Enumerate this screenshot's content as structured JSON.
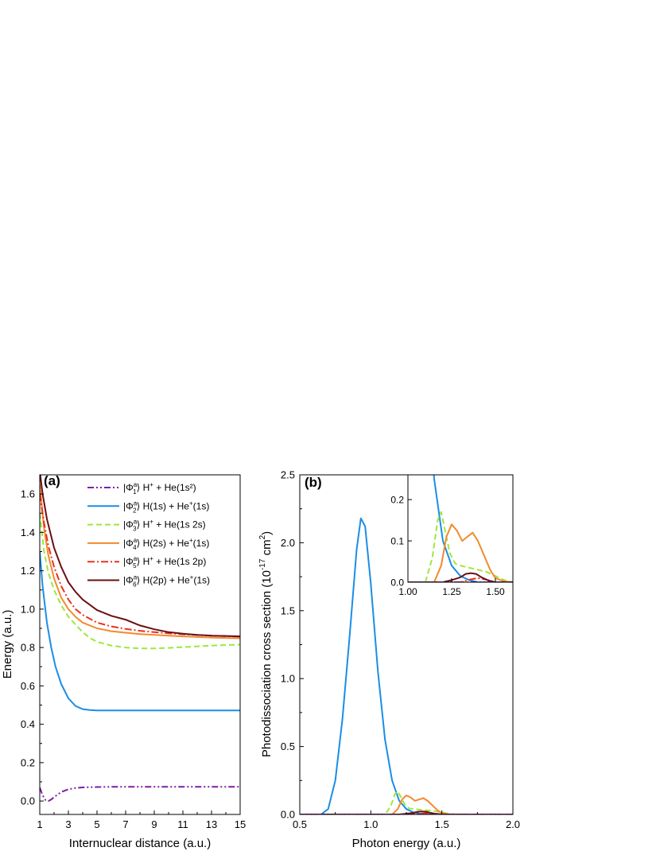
{
  "colors": {
    "phi1": "#7b1fa2",
    "phi2": "#1a8ee6",
    "phi3": "#9de83a",
    "phi4": "#f28a2e",
    "phi5": "#e8321e",
    "phi6": "#6b0f14"
  },
  "legend_a": [
    {
      "ket": "|Φ",
      "sup": "a",
      "sub": "1",
      "rest": "⟩  H",
      "rest_sup": "+",
      "tail": " + He(1s²)",
      "tail_sup": "",
      "tail_end": "",
      "color_key": "phi1",
      "dash": "dashdot-dot"
    },
    {
      "ket": "|Φ",
      "sup": "a",
      "sub": "2",
      "rest": "⟩  H(1s) + He",
      "rest_sup": "+",
      "tail": "(1s)",
      "tail_sup": "",
      "tail_end": "",
      "color_key": "phi2",
      "dash": "solid"
    },
    {
      "ket": "|Φ",
      "sup": "a",
      "sub": "3",
      "rest": "⟩  H",
      "rest_sup": "+",
      "tail": " + He(1s 2s)",
      "tail_sup": "",
      "tail_end": "",
      "color_key": "phi3",
      "dash": "dashed"
    },
    {
      "ket": "|Φ",
      "sup": "a",
      "sub": "4",
      "rest": "⟩  H(2s) + He",
      "rest_sup": "+",
      "tail": "(1s)",
      "tail_sup": "",
      "tail_end": "",
      "color_key": "phi4",
      "dash": "solid"
    },
    {
      "ket": "|Φ",
      "sup": "a",
      "sub": "5",
      "rest": "⟩  H",
      "rest_sup": "+",
      "tail": " + He(1s 2p)",
      "tail_sup": "",
      "tail_end": "",
      "color_key": "phi5",
      "dash": "dashdot"
    },
    {
      "ket": "|Φ",
      "sup": "a",
      "sub": "6",
      "rest": "⟩  H(2p) + He",
      "rest_sup": "+",
      "tail": "(1s)",
      "tail_sup": "",
      "tail_end": "",
      "color_key": "phi6",
      "dash": "solid"
    }
  ],
  "chart_data": [
    {
      "id": "a",
      "type": "line",
      "panel_label": "(a)",
      "xlabel": "Internuclear distance (a.u.)",
      "ylabel": "Energy (a.u.)",
      "xlim": [
        1,
        15
      ],
      "ylim": [
        -0.07,
        1.7
      ],
      "xticks": [
        "1",
        "3",
        "5",
        "7",
        "9",
        "11",
        "13",
        "15"
      ],
      "yticks": [
        "0.0",
        "0.2",
        "0.4",
        "0.6",
        "0.8",
        "1.0",
        "1.2",
        "1.4",
        "1.6"
      ],
      "series": [
        {
          "name": "|Φ1a⟩ H+ + He(1s²)",
          "color_key": "phi1",
          "dash": "dashdot-dot",
          "x": [
            1.0,
            1.2,
            1.4,
            1.6,
            1.8,
            2.0,
            2.3,
            2.6,
            3.0,
            3.5,
            4.0,
            5.0,
            6.0,
            8.0,
            10.0,
            12.0,
            15.0
          ],
          "y": [
            0.07,
            0.03,
            0.005,
            0.0,
            0.008,
            0.02,
            0.037,
            0.05,
            0.061,
            0.068,
            0.071,
            0.073,
            0.074,
            0.074,
            0.074,
            0.074,
            0.074
          ]
        },
        {
          "name": "|Φ2a⟩ H(1s) + He+(1s)",
          "color_key": "phi2",
          "dash": "solid",
          "x": [
            1.0,
            1.2,
            1.5,
            1.8,
            2.1,
            2.5,
            3.0,
            3.5,
            4.0,
            4.5,
            5.0,
            6.0,
            8.0,
            10.0,
            12.0,
            15.0
          ],
          "y": [
            1.3,
            1.12,
            0.93,
            0.8,
            0.7,
            0.61,
            0.535,
            0.495,
            0.479,
            0.474,
            0.472,
            0.472,
            0.472,
            0.472,
            0.472,
            0.472
          ]
        },
        {
          "name": "|Φ3a⟩ H+ + He(1s 2s)",
          "color_key": "phi3",
          "dash": "dashed",
          "x": [
            1.0,
            1.3,
            1.6,
            2.0,
            2.5,
            3.0,
            3.5,
            4.0,
            4.5,
            5.0,
            6.0,
            7.0,
            8.0,
            9.0,
            10.0,
            11.0,
            12.0,
            13.0,
            14.0,
            15.0
          ],
          "y": [
            1.5,
            1.3,
            1.19,
            1.1,
            1.02,
            0.96,
            0.92,
            0.88,
            0.85,
            0.83,
            0.81,
            0.8,
            0.795,
            0.795,
            0.798,
            0.802,
            0.806,
            0.81,
            0.813,
            0.815
          ]
        },
        {
          "name": "|Φ4a⟩ H(2s) + He+(1s)",
          "color_key": "phi4",
          "dash": "solid",
          "x": [
            1.0,
            1.3,
            1.6,
            2.0,
            2.5,
            3.0,
            3.5,
            4.0,
            5.0,
            6.0,
            7.0,
            8.0,
            9.0,
            10.0,
            11.0,
            12.0,
            13.0,
            14.0,
            15.0
          ],
          "y": [
            1.65,
            1.42,
            1.28,
            1.16,
            1.06,
            1.0,
            0.96,
            0.93,
            0.9,
            0.885,
            0.877,
            0.87,
            0.866,
            0.862,
            0.858,
            0.855,
            0.852,
            0.85,
            0.848
          ]
        },
        {
          "name": "|Φ5a⟩ H+ + He(1s 2p)",
          "color_key": "phi5",
          "dash": "dashdot",
          "x": [
            1.0,
            1.3,
            1.6,
            2.0,
            2.5,
            3.0,
            3.5,
            4.0,
            5.0,
            6.0,
            7.0,
            8.0,
            9.0,
            10.0,
            11.0,
            12.0,
            13.0,
            14.0,
            15.0
          ],
          "y": [
            1.6,
            1.45,
            1.33,
            1.22,
            1.12,
            1.05,
            1.0,
            0.97,
            0.93,
            0.91,
            0.897,
            0.887,
            0.88,
            0.874,
            0.869,
            0.865,
            0.862,
            0.859,
            0.857
          ]
        },
        {
          "name": "|Φ6a⟩ H(2p) + He+(1s)",
          "color_key": "phi6",
          "dash": "solid",
          "x": [
            1.0,
            1.2,
            1.5,
            2.0,
            2.5,
            3.0,
            3.5,
            4.0,
            5.0,
            6.0,
            7.0,
            8.0,
            9.0,
            10.0,
            11.0,
            12.0,
            13.0,
            14.0,
            15.0
          ],
          "y": [
            1.72,
            1.6,
            1.47,
            1.32,
            1.22,
            1.14,
            1.09,
            1.05,
            0.995,
            0.965,
            0.945,
            0.915,
            0.895,
            0.88,
            0.872,
            0.866,
            0.862,
            0.86,
            0.858
          ]
        }
      ]
    },
    {
      "id": "b",
      "type": "line",
      "panel_label": "(b)",
      "xlabel": "Photon energy (a.u.)",
      "ylabel_main": "Photodissociation cross section (10",
      "ylabel_sup": "-17",
      "ylabel_mid": " cm",
      "ylabel_sup2": "2",
      "ylabel_end": ")",
      "xlim": [
        0.5,
        2.0
      ],
      "ylim": [
        0,
        2.5
      ],
      "xticks": [
        "0.5",
        "1.0",
        "1.5",
        "2.0"
      ],
      "yticks": [
        "0.0",
        "0.5",
        "1.0",
        "1.5",
        "2.0",
        "2.5"
      ],
      "series": [
        {
          "name": "Φ2",
          "color_key": "phi2",
          "dash": "solid",
          "x": [
            0.5,
            0.65,
            0.7,
            0.75,
            0.8,
            0.85,
            0.9,
            0.93,
            0.96,
            1.0,
            1.05,
            1.1,
            1.15,
            1.2,
            1.25,
            1.3,
            1.35,
            1.4,
            1.5,
            2.0
          ],
          "y": [
            0.0,
            0.0,
            0.04,
            0.25,
            0.7,
            1.3,
            1.95,
            2.18,
            2.12,
            1.7,
            1.05,
            0.55,
            0.25,
            0.1,
            0.04,
            0.015,
            0.005,
            0.0,
            0.0,
            0.0
          ]
        },
        {
          "name": "Φ3",
          "color_key": "phi3",
          "dash": "dashed",
          "x": [
            0.5,
            1.1,
            1.14,
            1.17,
            1.19,
            1.21,
            1.24,
            1.27,
            1.3,
            1.35,
            1.4,
            1.45,
            1.5,
            1.55,
            1.6,
            2.0
          ],
          "y": [
            0.0,
            0.0,
            0.06,
            0.15,
            0.17,
            0.13,
            0.07,
            0.045,
            0.04,
            0.035,
            0.03,
            0.025,
            0.015,
            0.005,
            0.0,
            0.0
          ]
        },
        {
          "name": "Φ4",
          "color_key": "phi4",
          "dash": "solid",
          "x": [
            0.5,
            1.15,
            1.19,
            1.22,
            1.25,
            1.28,
            1.31,
            1.34,
            1.37,
            1.4,
            1.43,
            1.47,
            1.5,
            1.55,
            1.6,
            2.0
          ],
          "y": [
            0.0,
            0.0,
            0.04,
            0.11,
            0.14,
            0.125,
            0.1,
            0.11,
            0.12,
            0.1,
            0.07,
            0.03,
            0.01,
            0.002,
            0.0,
            0.0
          ]
        },
        {
          "name": "Φ5",
          "color_key": "phi5",
          "dash": "dashdot",
          "x": [
            0.5,
            1.3,
            1.35,
            1.4,
            1.45,
            1.5,
            2.0
          ],
          "y": [
            0.0,
            0.0,
            0.006,
            0.01,
            0.006,
            0.0,
            0.0
          ]
        },
        {
          "name": "Φ6",
          "color_key": "phi6",
          "dash": "solid",
          "x": [
            0.5,
            1.2,
            1.25,
            1.3,
            1.33,
            1.36,
            1.39,
            1.42,
            1.46,
            1.5,
            2.0
          ],
          "y": [
            0.0,
            0.0,
            0.005,
            0.012,
            0.02,
            0.022,
            0.02,
            0.012,
            0.004,
            0.0,
            0.0
          ]
        },
        {
          "name": "Φ1",
          "color_key": "phi1",
          "dash": "dashdot-dot",
          "x": [
            0.5,
            2.0
          ],
          "y": [
            0.0,
            0.0
          ]
        }
      ],
      "inset": {
        "xlim": [
          1.0,
          1.6
        ],
        "ylim": [
          0,
          0.26
        ],
        "xticks": [
          "1.00",
          "1.25",
          "1.50"
        ],
        "yticks": [
          "0.0",
          "0.1",
          "0.2"
        ]
      }
    }
  ]
}
